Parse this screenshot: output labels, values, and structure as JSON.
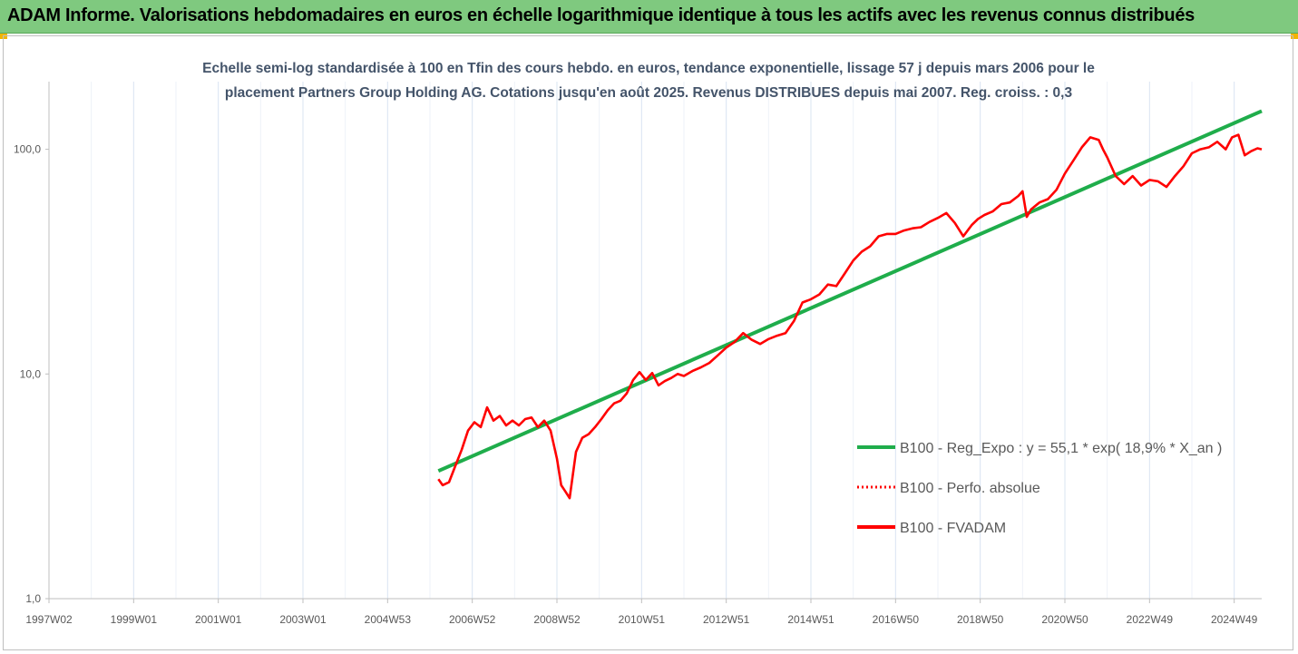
{
  "banner": {
    "title": "ADAM Informe. Valorisations hebdomadaires en euros en échelle logarithmique identique à tous les actifs avec les revenus connus distribués",
    "color": "#7fc97f"
  },
  "chart_data": {
    "type": "line",
    "subtitle_lines": [
      "Echelle semi-log standardisée à 100 en Tfin des cours hebdo. en euros, tendance exponentielle, lissage 57 j depuis mars 2006 pour le",
      "placement Partners Group Holding AG. Cotations jusqu'en août 2025. Revenus DISTRIBUES depuis mai 2007. Reg. croiss. : 0,3"
    ],
    "y_scale": "log",
    "ylim": [
      1,
      200
    ],
    "y_ticks": [
      {
        "value": 1,
        "label": "1,0"
      },
      {
        "value": 10,
        "label": "10,0"
      },
      {
        "value": 100,
        "label": "100,0"
      }
    ],
    "xlim": [
      1997.0,
      2025.65
    ],
    "x_ticks": [
      {
        "value": 1997.0,
        "label": "1997W02"
      },
      {
        "value": 1999.0,
        "label": "1999W01"
      },
      {
        "value": 2001.0,
        "label": "2001W01"
      },
      {
        "value": 2003.0,
        "label": "2003W01"
      },
      {
        "value": 2005.0,
        "label": "2004W53"
      },
      {
        "value": 2007.0,
        "label": "2006W52"
      },
      {
        "value": 2009.0,
        "label": "2008W52"
      },
      {
        "value": 2011.0,
        "label": "2010W51"
      },
      {
        "value": 2013.0,
        "label": "2012W51"
      },
      {
        "value": 2015.0,
        "label": "2014W51"
      },
      {
        "value": 2017.0,
        "label": "2016W50"
      },
      {
        "value": 2019.0,
        "label": "2018W50"
      },
      {
        "value": 2021.0,
        "label": "2020W50"
      },
      {
        "value": 2023.0,
        "label": "2022W49"
      },
      {
        "value": 2025.0,
        "label": "2024W49"
      }
    ],
    "grid": "vertical",
    "legend_position": "right",
    "series": [
      {
        "name": "B100 - Reg_Expo : y = 55,1 * exp( 18,9% *  X_an )",
        "color": "#1fad4b",
        "style": "solid",
        "x": [
          2006.2,
          2025.65
        ],
        "y": [
          3.7,
          148
        ]
      },
      {
        "name": "B100 - Perfo. absolue",
        "color": "#ff0000",
        "style": "dotted",
        "x": [],
        "y": []
      },
      {
        "name": "B100 - FVADAM",
        "color": "#ff0000",
        "style": "solid",
        "x": [
          2006.2,
          2006.3,
          2006.45,
          2006.6,
          2006.75,
          2006.9,
          2007.05,
          2007.2,
          2007.35,
          2007.5,
          2007.65,
          2007.8,
          2007.95,
          2008.1,
          2008.25,
          2008.4,
          2008.55,
          2008.7,
          2008.85,
          2009.0,
          2009.1,
          2009.2,
          2009.3,
          2009.45,
          2009.6,
          2009.75,
          2009.9,
          2010.05,
          2010.2,
          2010.35,
          2010.5,
          2010.65,
          2010.8,
          2010.95,
          2011.1,
          2011.25,
          2011.4,
          2011.55,
          2011.7,
          2011.85,
          2012.0,
          2012.2,
          2012.4,
          2012.6,
          2012.8,
          2013.0,
          2013.2,
          2013.4,
          2013.6,
          2013.8,
          2014.0,
          2014.2,
          2014.4,
          2014.6,
          2014.8,
          2015.0,
          2015.2,
          2015.4,
          2015.6,
          2015.8,
          2016.0,
          2016.2,
          2016.4,
          2016.6,
          2016.8,
          2017.0,
          2017.2,
          2017.4,
          2017.6,
          2017.8,
          2018.0,
          2018.2,
          2018.4,
          2018.6,
          2018.8,
          2018.95,
          2019.1,
          2019.3,
          2019.5,
          2019.7,
          2019.9,
          2020.0,
          2020.1,
          2020.2,
          2020.4,
          2020.6,
          2020.8,
          2021.0,
          2021.2,
          2021.4,
          2021.6,
          2021.8,
          2021.9,
          2022.0,
          2022.2,
          2022.4,
          2022.6,
          2022.8,
          2023.0,
          2023.2,
          2023.4,
          2023.6,
          2023.8,
          2024.0,
          2024.2,
          2024.4,
          2024.6,
          2024.8,
          2024.95,
          2025.1,
          2025.25,
          2025.4,
          2025.55,
          2025.65
        ],
        "y": [
          3.4,
          3.2,
          3.3,
          3.9,
          4.6,
          5.6,
          6.1,
          5.8,
          7.1,
          6.2,
          6.5,
          5.9,
          6.2,
          5.9,
          6.3,
          6.4,
          5.8,
          6.2,
          5.6,
          4.2,
          3.2,
          3.0,
          2.8,
          4.5,
          5.2,
          5.4,
          5.8,
          6.3,
          6.9,
          7.4,
          7.6,
          8.2,
          9.4,
          10.2,
          9.4,
          10.1,
          8.9,
          9.3,
          9.6,
          10.0,
          9.8,
          10.3,
          10.7,
          11.2,
          12.1,
          13.1,
          13.9,
          15.2,
          14.2,
          13.6,
          14.3,
          14.8,
          15.2,
          17.2,
          20.8,
          21.5,
          22.6,
          25.0,
          24.6,
          28.0,
          32.0,
          35.0,
          37.0,
          41.0,
          42.0,
          42.0,
          43.5,
          44.5,
          45.0,
          47.5,
          49.5,
          52.0,
          47.0,
          41.0,
          46.0,
          49.0,
          51.0,
          53.0,
          57.0,
          58.0,
          62.0,
          65.0,
          50.0,
          54.0,
          58.0,
          60.0,
          66.0,
          78.0,
          89.0,
          102.0,
          113.0,
          110.0,
          100.0,
          92.0,
          76.0,
          70.0,
          76.0,
          69.0,
          73.0,
          72.0,
          68.0,
          76.0,
          84.0,
          96.0,
          100.0,
          102.0,
          108.0,
          100.0,
          113.0,
          116.0,
          94.0,
          98.0,
          101.0,
          100.0
        ]
      }
    ]
  }
}
